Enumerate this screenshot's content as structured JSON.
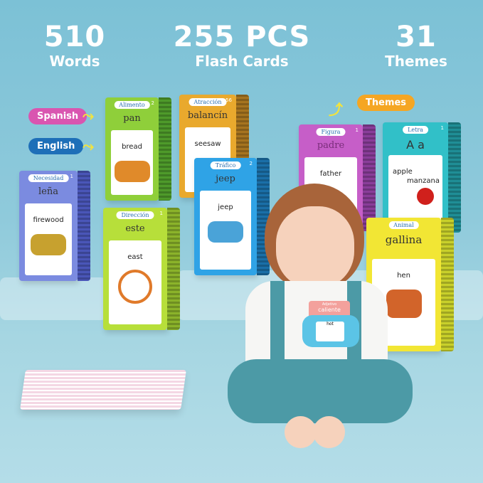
{
  "stats": [
    {
      "value": "510",
      "label": "Words"
    },
    {
      "value": "255 PCS",
      "label": "Flash Cards"
    },
    {
      "value": "31",
      "label": "Themes"
    }
  ],
  "callouts": {
    "spanish": "Spanish",
    "english": "English",
    "themes": "Themes"
  },
  "colors": {
    "spanish": "#d955b0",
    "english": "#1e6fb8",
    "themes": "#f5a623"
  },
  "cards": [
    {
      "theme": "Alimento",
      "num": "2",
      "spanish": "pan",
      "english": "bread"
    },
    {
      "theme": "Atracción",
      "num": "56",
      "spanish": "balancín",
      "english": "seesaw"
    },
    {
      "theme": "Necesidad",
      "num": "1",
      "spanish": "leña",
      "english": "firewood"
    },
    {
      "theme": "Tráfico",
      "num": "2",
      "spanish": "jeep",
      "english": "jeep"
    },
    {
      "theme": "Figura",
      "num": "1",
      "spanish": "padre",
      "english": "father"
    },
    {
      "theme": "Letra",
      "num": "1",
      "spanish": "A a",
      "english": "apple",
      "extra": "manzana"
    },
    {
      "theme": "Dirección",
      "num": "1",
      "spanish": "este",
      "english": "east"
    },
    {
      "theme": "Animal",
      "num": "",
      "spanish": "gallina",
      "english": "hen"
    }
  ],
  "device": {
    "theme": "Adjetivo",
    "word": "caliente",
    "english": "hot"
  }
}
